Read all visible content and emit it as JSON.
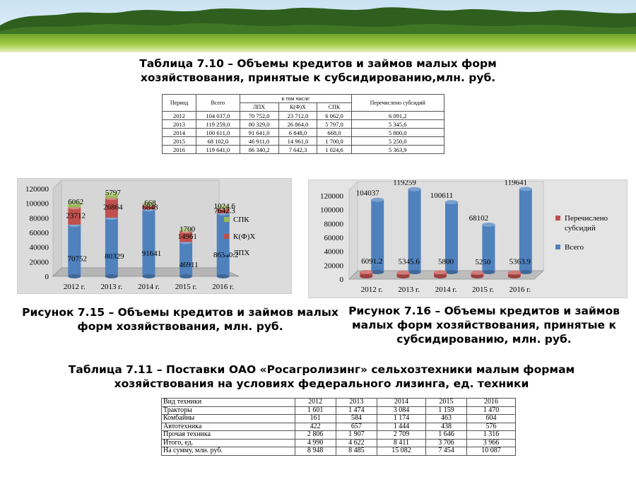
{
  "table_7_10": {
    "caption": "Таблица 7.10 – Объемы кредитов и займов малых форм хозяйствования, принятые к субсидированию,млн. руб.",
    "headers": {
      "period": "Период",
      "total": "Всего",
      "incl": "в том числе",
      "lph": "ЛПХ",
      "kfh": "К(Ф)Х",
      "spk": "СПК",
      "subsidy": "Перечислено субсидий"
    },
    "rows": [
      [
        "2012",
        "104 037,0",
        "70 752,0",
        "23 712,0",
        "6 062,0",
        "6 091,2"
      ],
      [
        "2013",
        "119 259,0",
        "80 329,0",
        "26 864,0",
        "5 797,0",
        "5 345,6"
      ],
      [
        "2014",
        "100 611,0",
        "91 641,0",
        "6 848,0",
        "668,0",
        "5 800,0"
      ],
      [
        "2015",
        "68 102,0",
        "46 911,0",
        "14 961,0",
        "1 700,0",
        "5 250,0"
      ],
      [
        "2016",
        "119 641,0",
        "86 340,2",
        "7 642,3",
        "1 024,6",
        "5 363,9"
      ]
    ]
  },
  "figure_7_15": {
    "caption": "Рисунок 7.15 – Объемы кредитов и займов малых форм хозяйствования, млн. руб."
  },
  "figure_7_16": {
    "caption": "Рисунок 7.16 – Объемы кредитов и займов малых форм хозяйствования, принятые к субсидированию, млн. руб."
  },
  "table_7_11": {
    "caption": "Таблица 7.11 – Поставки ОАО «Росагролизинг» сельхозтехники малым формам хозяйствования на условиях федерального лизинга, ед. техники",
    "header": [
      "Вид техники",
      "2012",
      "2013",
      "2014",
      "2015",
      "2016"
    ],
    "rows": [
      [
        "Тракторы",
        "1 601",
        "1 474",
        "3 084",
        "1 159",
        "1 470"
      ],
      [
        "Комбайны",
        "161",
        "584",
        "1 174",
        "463",
        "604"
      ],
      [
        "Автотехника",
        "422",
        "657",
        "1 444",
        "438",
        "576"
      ],
      [
        "Прочая техника",
        "2 806",
        "1 907",
        "2 709",
        "1 646",
        "1 316"
      ],
      [
        "Итого, ед.",
        "4 990",
        "4 622",
        "8 411",
        "3 706",
        "3 966"
      ],
      [
        "На сумму, млн. руб.",
        "8 948",
        "8 485",
        "15 082",
        "7 454",
        "10 087"
      ]
    ]
  },
  "chart_data": [
    {
      "type": "bar",
      "stacked": true,
      "categories": [
        "2012 г.",
        "2013 г.",
        "2014 г.",
        "2015 г.",
        "2016 г."
      ],
      "series": [
        {
          "name": "ЛПХ",
          "values": [
            70752,
            80329,
            91641,
            46911,
            86340.2
          ],
          "labels": [
            "70752",
            "80329",
            "91641",
            "46911",
            "86340.2"
          ]
        },
        {
          "name": "К(Ф)Х",
          "values": [
            23712,
            26864,
            6848,
            14961,
            7642.3
          ],
          "labels": [
            "23712",
            "26864",
            "6848",
            "14961",
            "7642.3"
          ]
        },
        {
          "name": "СПК",
          "values": [
            6062,
            5797,
            668,
            1700,
            1024.6
          ],
          "labels": [
            "6062",
            "5797",
            "668",
            "1700",
            "1024.6"
          ]
        }
      ],
      "yticks": [
        "0",
        "20000",
        "40000",
        "60000",
        "80000",
        "100000",
        "120000"
      ],
      "ylim": [
        0,
        120000
      ],
      "legend": "right",
      "colors": {
        "ЛПХ": "#4f81bd",
        "К(Ф)Х": "#c0504d",
        "СПК": "#9bbb59"
      }
    },
    {
      "type": "bar",
      "shape": "cylinder",
      "categories": [
        "2012 г.",
        "2013 г.",
        "2014 г.",
        "2015 г.",
        "2016 г."
      ],
      "series": [
        {
          "name": "Перечислено субсидий",
          "values": [
            6091.2,
            5345.6,
            5800,
            5250,
            5363.9
          ],
          "labels": [
            "6091.2",
            "5345.6",
            "5800",
            "5250",
            "5363.9"
          ]
        },
        {
          "name": "Всего",
          "values": [
            104037,
            119259,
            100611,
            68102,
            119641
          ],
          "labels": [
            "104037",
            "119259",
            "100611",
            "68102",
            "119641"
          ]
        }
      ],
      "yticks": [
        "0",
        "20000",
        "40000",
        "60000",
        "80000",
        "100000",
        "120000"
      ],
      "ylim": [
        0,
        120000
      ],
      "legend": "right",
      "colors": {
        "Перечислено субсидий": "#c0504d",
        "Всего": "#4f81bd"
      }
    }
  ]
}
